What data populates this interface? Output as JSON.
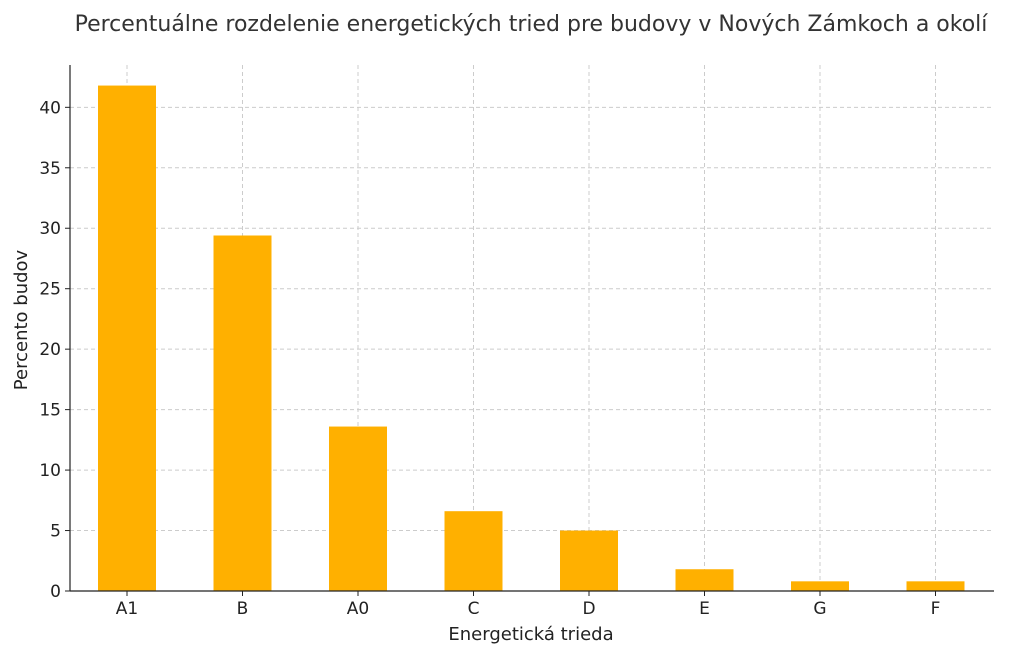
{
  "chart_data": {
    "type": "bar",
    "title": "Percentuálne rozdelenie energetických tried pre budovy v Nových Zámkoch a okolí",
    "xlabel": "Energetická trieda",
    "ylabel": "Percento budov",
    "categories": [
      "A1",
      "B",
      "A0",
      "C",
      "D",
      "E",
      "G",
      "F"
    ],
    "values": [
      41.8,
      29.4,
      13.6,
      6.6,
      5.0,
      1.8,
      0.8,
      0.8
    ],
    "yticks": [
      0,
      5,
      10,
      15,
      20,
      25,
      30,
      35,
      40
    ],
    "ylim": [
      0,
      43.5
    ],
    "grid": true,
    "bar_color": "#FFB000"
  }
}
